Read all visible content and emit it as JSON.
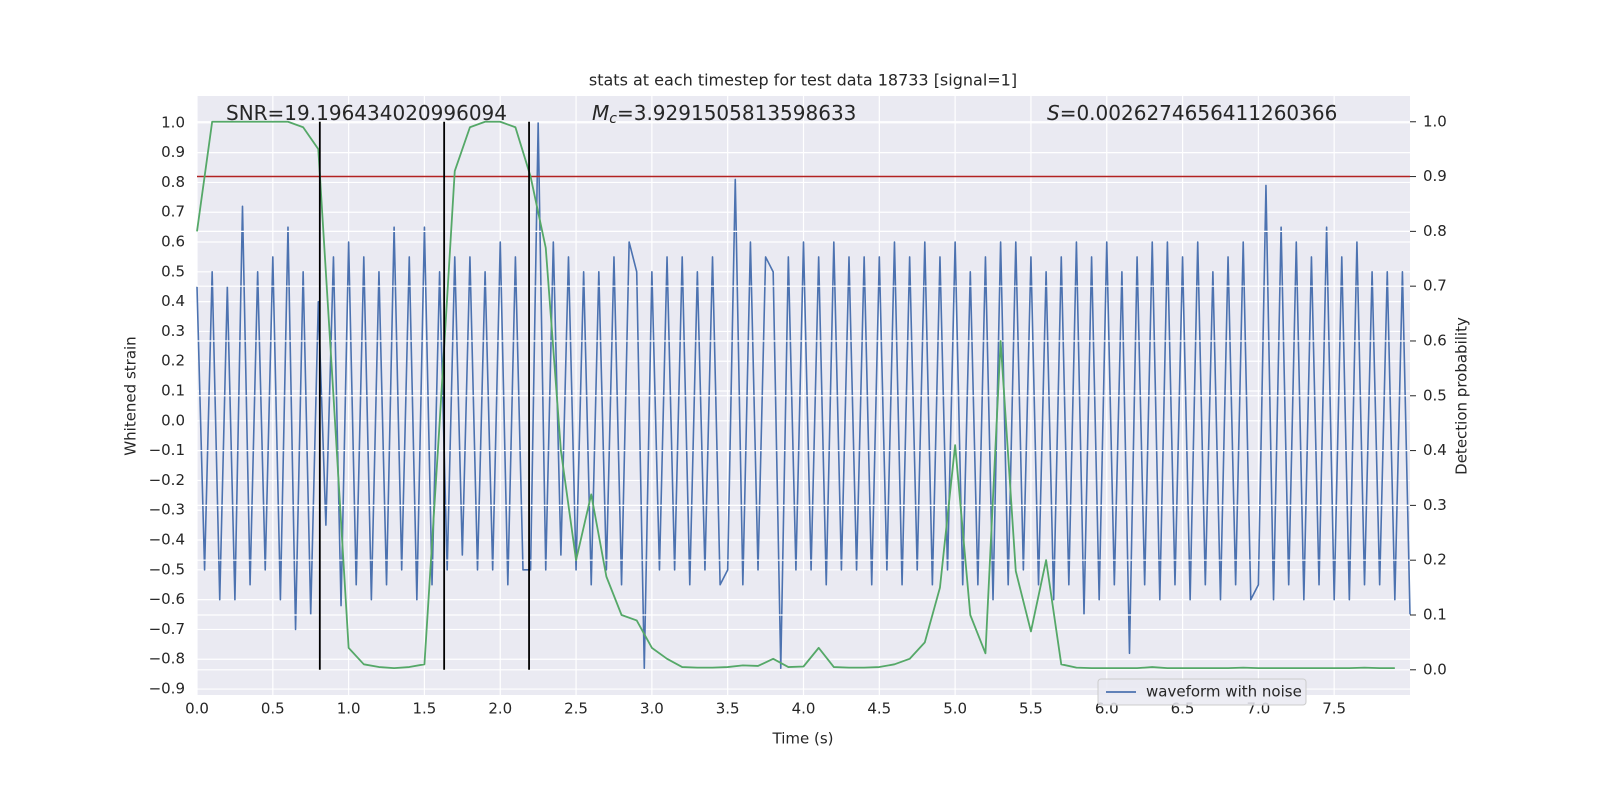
{
  "chart_data": {
    "type": "line",
    "title": "stats at each timestep for test data 18733 [signal=1]",
    "xlabel": "Time (s)",
    "ylabel": "Whitened strain",
    "y2label": "Detection probability",
    "annotations": [
      {
        "text": "SNR=19.196434020996094"
      },
      {
        "symbol": "M",
        "subscript": "c",
        "text": "=3.9291505813598633"
      },
      {
        "symbol": "S",
        "text": "=0.0026274656411260366"
      }
    ],
    "x": [
      0,
      0.05,
      0.1,
      0.15,
      0.2,
      0.25,
      0.3,
      0.35,
      0.4,
      0.45,
      0.5,
      0.55,
      0.6,
      0.65,
      0.7,
      0.75,
      0.8,
      0.85,
      0.9,
      0.95,
      1,
      1.05,
      1.1,
      1.15,
      1.2,
      1.25,
      1.3,
      1.35,
      1.4,
      1.45,
      1.5,
      1.55,
      1.6,
      1.65,
      1.7,
      1.75,
      1.8,
      1.85,
      1.9,
      1.95,
      2,
      2.05,
      2.1,
      2.15,
      2.2,
      2.25,
      2.3,
      2.35,
      2.4,
      2.45,
      2.5,
      2.55,
      2.6,
      2.65,
      2.7,
      2.75,
      2.8,
      2.85,
      2.9,
      2.95,
      3,
      3.05,
      3.1,
      3.15,
      3.2,
      3.25,
      3.3,
      3.35,
      3.4,
      3.45,
      3.5,
      3.55,
      3.6,
      3.65,
      3.7,
      3.75,
      3.8,
      3.85,
      3.9,
      3.95,
      4,
      4.05,
      4.1,
      4.15,
      4.2,
      4.25,
      4.3,
      4.35,
      4.4,
      4.45,
      4.5,
      4.55,
      4.6,
      4.65,
      4.7,
      4.75,
      4.8,
      4.85,
      4.9,
      4.95,
      5,
      5.05,
      5.1,
      5.15,
      5.2,
      5.25,
      5.3,
      5.35,
      5.4,
      5.45,
      5.5,
      5.55,
      5.6,
      5.65,
      5.7,
      5.75,
      5.8,
      5.85,
      5.9,
      5.95,
      6,
      6.05,
      6.1,
      6.15,
      6.2,
      6.25,
      6.3,
      6.35,
      6.4,
      6.45,
      6.5,
      6.55,
      6.6,
      6.65,
      6.7,
      6.75,
      6.8,
      6.85,
      6.9,
      6.95,
      7,
      7.05,
      7.1,
      7.15,
      7.2,
      7.25,
      7.3,
      7.35,
      7.4,
      7.45,
      7.5,
      7.55,
      7.6,
      7.65,
      7.7,
      7.75,
      7.8,
      7.85,
      7.9,
      7.95,
      8
    ],
    "series": [
      {
        "name": "waveform with noise",
        "color": "#4c72b0",
        "values": [
          0.45,
          -0.5,
          0.5,
          -0.6,
          0.45,
          -0.6,
          0.72,
          -0.55,
          0.5,
          -0.5,
          0.55,
          -0.6,
          0.65,
          -0.7,
          0.5,
          -0.65,
          0.4,
          -0.35,
          0.55,
          -0.62,
          0.6,
          -0.55,
          0.55,
          -0.6,
          0.5,
          -0.55,
          0.65,
          -0.5,
          0.55,
          -0.6,
          0.65,
          -0.55,
          0.5,
          -0.5,
          0.55,
          -0.45,
          0.55,
          -0.5,
          0.5,
          -0.5,
          0.6,
          -0.55,
          0.55,
          -0.5,
          -0.5,
          1.0,
          -0.5,
          0.6,
          -0.45,
          0.55,
          -0.5,
          0.5,
          -0.55,
          0.5,
          -0.5,
          0.55,
          -0.55,
          0.6,
          0.5,
          -0.83,
          0.5,
          -0.5,
          0.55,
          -0.5,
          0.55,
          -0.55,
          0.5,
          -0.5,
          0.55,
          -0.55,
          -0.5,
          0.81,
          -0.55,
          0.6,
          -0.5,
          0.55,
          0.5,
          -0.83,
          0.55,
          -0.5,
          0.6,
          -0.5,
          0.55,
          -0.55,
          0.6,
          -0.5,
          0.55,
          -0.5,
          0.55,
          -0.55,
          0.55,
          -0.5,
          0.6,
          -0.55,
          0.55,
          -0.5,
          0.6,
          -0.55,
          0.55,
          -0.5,
          0.6,
          -0.55,
          0.5,
          -0.55,
          0.55,
          -0.6,
          0.6,
          -0.55,
          0.6,
          -0.5,
          0.55,
          -0.55,
          0.5,
          -0.6,
          0.55,
          -0.55,
          0.6,
          -0.65,
          0.55,
          -0.6,
          0.6,
          -0.55,
          0.5,
          -0.78,
          0.55,
          -0.55,
          0.6,
          -0.6,
          0.6,
          -0.55,
          0.55,
          -0.6,
          0.6,
          -0.55,
          0.5,
          -0.6,
          0.55,
          -0.55,
          0.6,
          -0.6,
          -0.55,
          0.79,
          -0.6,
          0.65,
          -0.55,
          0.6,
          -0.6,
          0.55,
          -0.55,
          0.65,
          -0.6,
          0.55,
          -0.6,
          0.6,
          -0.55,
          0.5,
          -0.55,
          0.5,
          -0.6,
          0.5,
          -0.65
        ]
      },
      {
        "color": "#55a868",
        "axis": "y2",
        "x": [
          0,
          0.1,
          0.2,
          0.3,
          0.4,
          0.5,
          0.6,
          0.7,
          0.8,
          0.9,
          1,
          1.1,
          1.2,
          1.3,
          1.4,
          1.5,
          1.6,
          1.7,
          1.8,
          1.9,
          2,
          2.1,
          2.2,
          2.3,
          2.4,
          2.5,
          2.6,
          2.7,
          2.8,
          2.9,
          3,
          3.1,
          3.2,
          3.3,
          3.4,
          3.5,
          3.6,
          3.7,
          3.8,
          3.9,
          4,
          4.1,
          4.2,
          4.3,
          4.4,
          4.5,
          4.6,
          4.7,
          4.8,
          4.9,
          5,
          5.1,
          5.2,
          5.3,
          5.4,
          5.5,
          5.6,
          5.7,
          5.8,
          5.9,
          6,
          6.1,
          6.2,
          6.3,
          6.4,
          6.5,
          6.6,
          6.7,
          6.8,
          6.9,
          7,
          7.1,
          7.2,
          7.3,
          7.4,
          7.5,
          7.6,
          7.7,
          7.8,
          7.9
        ],
        "values": [
          0.8,
          1.0,
          1.0,
          1.0,
          1.0,
          1.0,
          1.0,
          0.99,
          0.95,
          0.5,
          0.04,
          0.01,
          0.005,
          0.003,
          0.005,
          0.01,
          0.45,
          0.91,
          0.99,
          1.0,
          1.0,
          0.99,
          0.9,
          0.77,
          0.4,
          0.2,
          0.32,
          0.17,
          0.1,
          0.09,
          0.04,
          0.02,
          0.005,
          0.004,
          0.004,
          0.005,
          0.008,
          0.007,
          0.02,
          0.005,
          0.006,
          0.04,
          0.005,
          0.004,
          0.004,
          0.005,
          0.01,
          0.02,
          0.05,
          0.15,
          0.41,
          0.1,
          0.03,
          0.6,
          0.18,
          0.07,
          0.2,
          0.01,
          0.004,
          0.003,
          0.003,
          0.003,
          0.003,
          0.005,
          0.003,
          0.003,
          0.003,
          0.003,
          0.003,
          0.004,
          0.003,
          0.003,
          0.003,
          0.003,
          0.003,
          0.003,
          0.003,
          0.004,
          0.003,
          0.003
        ]
      }
    ],
    "hlines": [
      {
        "y": 0.9,
        "axis": "y2",
        "color": "#b22222"
      }
    ],
    "vlines": {
      "x": [
        0.81,
        1.63,
        2.19
      ],
      "ymin": 0,
      "ymax": 1,
      "axis": "y2",
      "color": "#000000"
    },
    "xlim": [
      0,
      8.0
    ],
    "ylim": [
      -0.92,
      1.09
    ],
    "y2lim": [
      -0.046,
      1.047
    ],
    "xticks": [
      {
        "value": 0,
        "label": "0.0"
      },
      {
        "value": 0.5,
        "label": "0.5"
      },
      {
        "value": 1,
        "label": "1.0"
      },
      {
        "value": 1.5,
        "label": "1.5"
      },
      {
        "value": 2,
        "label": "2.0"
      },
      {
        "value": 2.5,
        "label": "2.5"
      },
      {
        "value": 3,
        "label": "3.0"
      },
      {
        "value": 3.5,
        "label": "3.5"
      },
      {
        "value": 4,
        "label": "4.0"
      },
      {
        "value": 4.5,
        "label": "4.5"
      },
      {
        "value": 5,
        "label": "5.0"
      },
      {
        "value": 5.5,
        "label": "5.5"
      },
      {
        "value": 6,
        "label": "6.0"
      },
      {
        "value": 6.5,
        "label": "6.5"
      },
      {
        "value": 7,
        "label": "7.0"
      },
      {
        "value": 7.5,
        "label": "7.5"
      }
    ],
    "yticks": [
      {
        "value": -0.9,
        "label": "−0.9"
      },
      {
        "value": -0.8,
        "label": "−0.8"
      },
      {
        "value": -0.7,
        "label": "−0.7"
      },
      {
        "value": -0.6,
        "label": "−0.6"
      },
      {
        "value": -0.5,
        "label": "−0.5"
      },
      {
        "value": -0.4,
        "label": "−0.4"
      },
      {
        "value": -0.3,
        "label": "−0.3"
      },
      {
        "value": -0.2,
        "label": "−0.2"
      },
      {
        "value": -0.1,
        "label": "−0.1"
      },
      {
        "value": 0,
        "label": "0.0"
      },
      {
        "value": 0.1,
        "label": "0.1"
      },
      {
        "value": 0.2,
        "label": "0.2"
      },
      {
        "value": 0.3,
        "label": "0.3"
      },
      {
        "value": 0.4,
        "label": "0.4"
      },
      {
        "value": 0.5,
        "label": "0.5"
      },
      {
        "value": 0.6,
        "label": "0.6"
      },
      {
        "value": 0.7,
        "label": "0.7"
      },
      {
        "value": 0.8,
        "label": "0.8"
      },
      {
        "value": 0.9,
        "label": "0.9"
      },
      {
        "value": 1,
        "label": "1.0"
      }
    ],
    "y2ticks": [
      {
        "value": 0,
        "label": "0.0"
      },
      {
        "value": 0.1,
        "label": "0.1"
      },
      {
        "value": 0.2,
        "label": "0.2"
      },
      {
        "value": 0.3,
        "label": "0.3"
      },
      {
        "value": 0.4,
        "label": "0.4"
      },
      {
        "value": 0.5,
        "label": "0.5"
      },
      {
        "value": 0.6,
        "label": "0.6"
      },
      {
        "value": 0.7,
        "label": "0.7"
      },
      {
        "value": 0.8,
        "label": "0.8"
      },
      {
        "value": 0.9,
        "label": "0.9"
      },
      {
        "value": 1,
        "label": "1.0"
      }
    ],
    "grid": true,
    "legend": "lower right"
  }
}
